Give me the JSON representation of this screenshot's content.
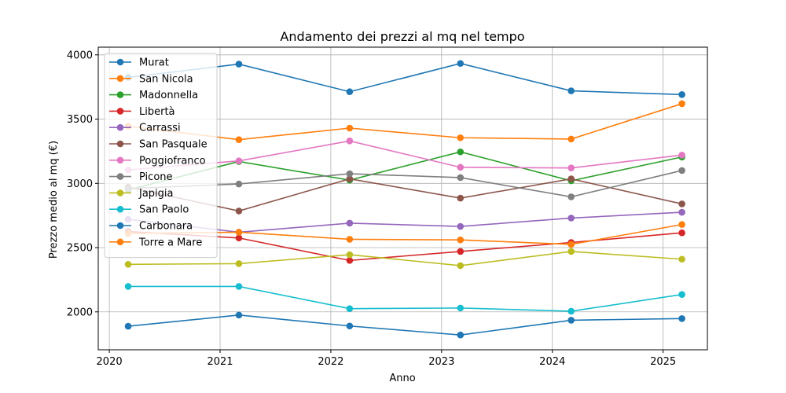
{
  "chart_data": {
    "type": "line",
    "title": "Andamento dei prezzi al mq nel tempo",
    "xlabel": "Anno",
    "ylabel": "Prezzo medio al mq (€)",
    "xlim": [
      2019.9,
      2025.4
    ],
    "ylim": [
      1705,
      4060
    ],
    "xticks": [
      2020,
      2021,
      2022,
      2023,
      2024,
      2025
    ],
    "yticks": [
      2000,
      2500,
      3000,
      3500,
      4000
    ],
    "grid": true,
    "legend_position": "top-left",
    "x": [
      2020.17,
      2021.17,
      2022.17,
      2023.17,
      2024.17,
      2025.17
    ],
    "series": [
      {
        "name": "Murat",
        "color": "#1f77b4",
        "values": [
          3825,
          3928,
          3713,
          3933,
          3720,
          3691
        ]
      },
      {
        "name": "San Nicola",
        "color": "#ff7f0e",
        "values": [
          3445,
          3340,
          3430,
          3355,
          3345,
          3620
        ]
      },
      {
        "name": "Madonnella",
        "color": "#2ca02c",
        "values": [
          2950,
          3170,
          3025,
          3245,
          3020,
          3205
        ]
      },
      {
        "name": "Libertà",
        "color": "#d62728",
        "values": [
          2625,
          2575,
          2400,
          2470,
          2540,
          2615
        ]
      },
      {
        "name": "Carrassi",
        "color": "#9467bd",
        "values": [
          2720,
          2620,
          2690,
          2665,
          2730,
          2775
        ]
      },
      {
        "name": "San Pasquale",
        "color": "#8c564b",
        "values": [
          2970,
          2785,
          3035,
          2885,
          3035,
          2840
        ]
      },
      {
        "name": "Poggiofranco",
        "color": "#e377c2",
        "values": [
          3105,
          3175,
          3330,
          3125,
          3120,
          3220
        ]
      },
      {
        "name": "Picone",
        "color": "#7f7f7f",
        "values": [
          2960,
          2995,
          3075,
          3045,
          2895,
          3100
        ]
      },
      {
        "name": "Japigia",
        "color": "#bcbd22",
        "values": [
          2370,
          2375,
          2445,
          2360,
          2470,
          2410
        ]
      },
      {
        "name": "San Paolo",
        "color": "#17becf",
        "values": [
          2198,
          2198,
          2025,
          2030,
          2005,
          2135
        ]
      },
      {
        "name": "Carbonara",
        "color": "#1f77b4",
        "values": [
          1888,
          1975,
          1890,
          1820,
          1935,
          1948
        ]
      },
      {
        "name": "Torre a Mare",
        "color": "#ff7f0e",
        "values": [
          2610,
          2620,
          2565,
          2560,
          2525,
          2680
        ]
      }
    ]
  }
}
